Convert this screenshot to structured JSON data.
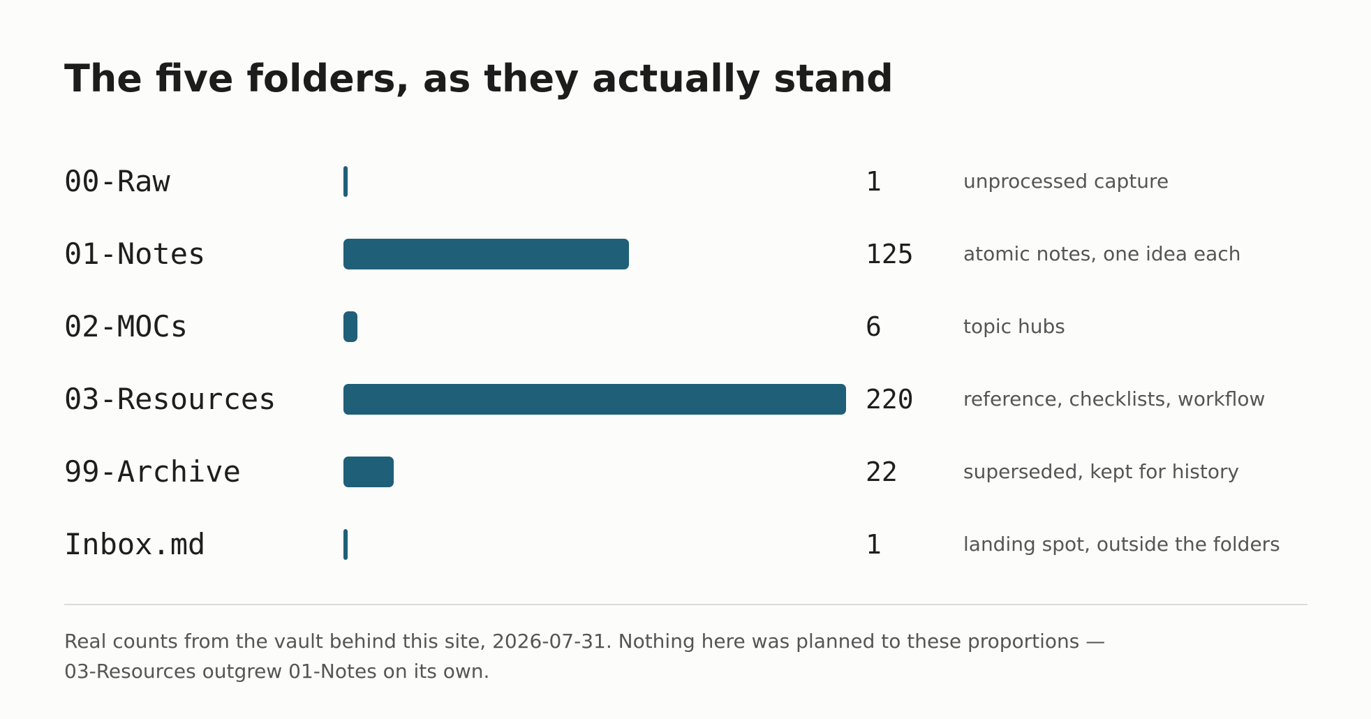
{
  "colors": {
    "background": "#fcfcfa",
    "bar": "#1f5f78",
    "text": "#1c1c1c",
    "muted_text": "#555555",
    "divider": "#dadad8"
  },
  "chart_data": {
    "type": "bar",
    "orientation": "horizontal",
    "title": "The five folders, as they actually stand",
    "categories": [
      "00-Raw",
      "01-Notes",
      "02-MOCs",
      "03-Resources",
      "99-Archive",
      "Inbox.md"
    ],
    "values": [
      1,
      125,
      6,
      220,
      22,
      1
    ],
    "value_labels": [
      "1",
      "125",
      "6",
      "220",
      "22",
      "1"
    ],
    "descriptions": [
      "unprocessed capture",
      "atomic notes, one idea each",
      "topic hubs",
      "reference, checklists, workflow",
      "superseded, kept for history",
      "landing spot, outside the folders"
    ],
    "xlim": [
      0,
      220
    ],
    "grid": false,
    "legend": "none"
  },
  "footnote": {
    "line1": "Real counts from the vault behind this site, 2026-07-31. Nothing here was planned to these proportions —",
    "line2": "03-Resources outgrew 01-Notes on its own."
  }
}
